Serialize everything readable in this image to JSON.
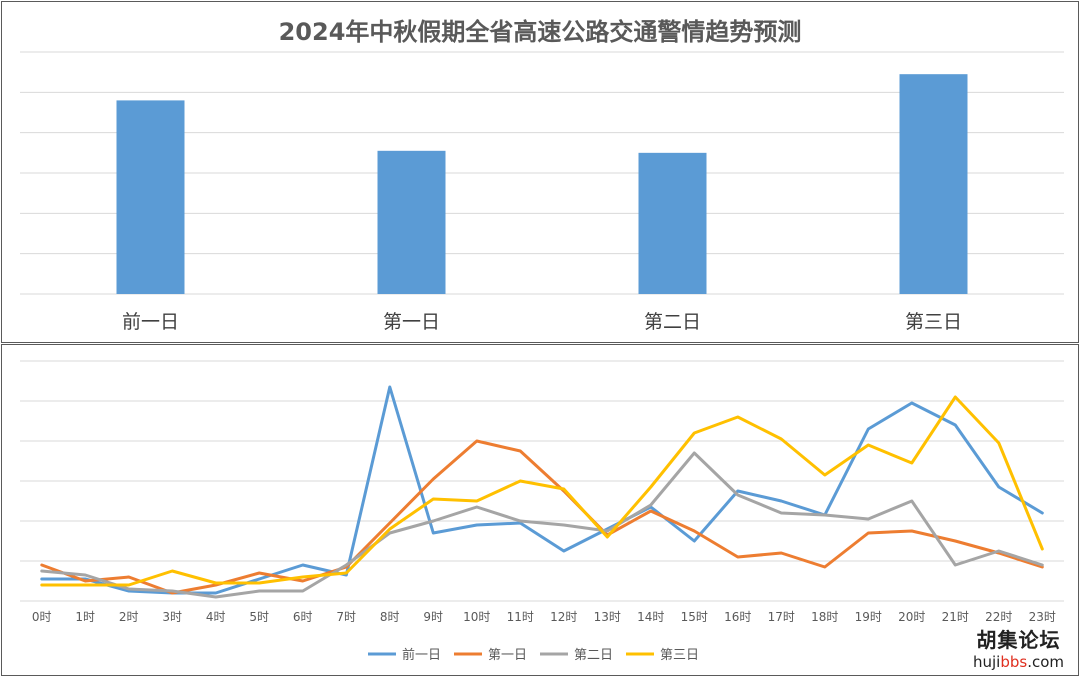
{
  "chart_data": [
    {
      "type": "bar",
      "title": "2024年中秋假期全省高速公路交通警情趋势预测",
      "categories": [
        "前一日",
        "第一日",
        "第二日",
        "第三日"
      ],
      "values": [
        4.8,
        3.55,
        3.5,
        5.45
      ],
      "ylim": [
        0,
        6
      ],
      "grid": true,
      "color": "#5b9bd5"
    },
    {
      "type": "line",
      "title": "",
      "categories": [
        "0时",
        "1时",
        "2时",
        "3时",
        "4时",
        "5时",
        "6时",
        "7时",
        "8时",
        "9时",
        "10时",
        "11时",
        "12时",
        "13时",
        "14时",
        "15时",
        "16时",
        "17时",
        "18时",
        "19时",
        "20时",
        "21时",
        "22时",
        "23时"
      ],
      "ylim": [
        0,
        6
      ],
      "grid": true,
      "legend": "bottom",
      "series": [
        {
          "name": "前一日",
          "color": "#5b9bd5",
          "values": [
            0.55,
            0.55,
            0.25,
            0.2,
            0.2,
            0.55,
            0.9,
            0.65,
            5.35,
            1.7,
            1.9,
            1.95,
            1.25,
            1.8,
            2.35,
            1.5,
            2.75,
            2.5,
            2.15,
            4.3,
            4.95,
            4.4,
            2.85,
            2.2
          ]
        },
        {
          "name": "第一日",
          "color": "#ed7d31",
          "values": [
            0.9,
            0.5,
            0.6,
            0.2,
            0.4,
            0.7,
            0.5,
            0.85,
            1.95,
            3.05,
            4.0,
            3.75,
            2.75,
            1.65,
            2.25,
            1.75,
            1.1,
            1.2,
            0.85,
            1.7,
            1.75,
            1.5,
            1.2,
            0.85
          ]
        },
        {
          "name": "第二日",
          "color": "#a5a5a5",
          "values": [
            0.75,
            0.65,
            0.3,
            0.25,
            0.1,
            0.25,
            0.25,
            0.9,
            1.7,
            2.0,
            2.35,
            2.0,
            1.9,
            1.75,
            2.4,
            3.7,
            2.65,
            2.2,
            2.15,
            2.05,
            2.5,
            0.9,
            1.25,
            0.9
          ]
        },
        {
          "name": "第三日",
          "color": "#ffc000",
          "values": [
            0.4,
            0.4,
            0.4,
            0.75,
            0.45,
            0.45,
            0.6,
            0.7,
            1.8,
            2.55,
            2.5,
            3.0,
            2.8,
            1.6,
            2.85,
            4.2,
            4.6,
            4.05,
            3.15,
            3.9,
            3.45,
            5.1,
            3.95,
            1.3
          ]
        }
      ]
    }
  ],
  "watermark": {
    "name": "胡集论坛",
    "url_prefix": "huji",
    "url_highlight": "bbs",
    "url_suffix": ".com"
  }
}
